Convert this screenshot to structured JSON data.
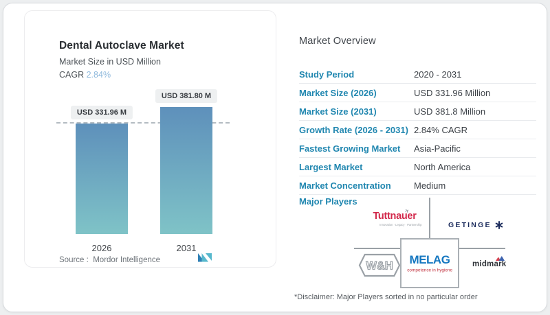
{
  "chart_card": {
    "title": "Dental Autoclave Market",
    "subtitle": "Market Size in USD Million",
    "cagr_label": "CAGR",
    "cagr_value": "2.84%",
    "source_label": "Source :",
    "source_name": "Mordor Intelligence"
  },
  "chart_data": {
    "type": "bar",
    "title": "Dental Autoclave Market",
    "ylabel": "Market Size in USD Million",
    "categories": [
      "2026",
      "2031"
    ],
    "values": [
      331.96,
      381.8
    ],
    "value_labels": [
      "USD 331.96 M",
      "USD 381.80 M"
    ],
    "reference_line": 331.96,
    "ylim": [
      0,
      420
    ],
    "grid": false,
    "bar_color_top": "#5e90bb",
    "bar_color_bottom": "#7fc3c7"
  },
  "overview": {
    "title": "Market Overview",
    "rows": [
      {
        "label": "Study Period",
        "value": "2020 - 2031"
      },
      {
        "label": "Market Size (2026)",
        "value": "USD 331.96 Million"
      },
      {
        "label": "Market Size (2031)",
        "value": "USD 381.8 Million"
      },
      {
        "label": "Growth Rate (2026 - 2031)",
        "value": "2.84% CAGR"
      },
      {
        "label": "Fastest Growing Market",
        "value": "Asia-Pacific"
      },
      {
        "label": "Largest Market",
        "value": "North America"
      },
      {
        "label": "Market Concentration",
        "value": "Medium"
      }
    ],
    "major_players_label": "Major Players",
    "players": {
      "tuttnauer": {
        "name": "Tuttnauer",
        "tagline": "Innovation · Legacy · Partnership",
        "color": "#d2294b"
      },
      "getinge": {
        "name": "GETINGE",
        "color": "#1b2b5c"
      },
      "wh": {
        "name": "W&H",
        "color": "#9aa0a6"
      },
      "melag": {
        "name": "MELAG",
        "tagline": "competence in hygiene",
        "color": "#1577c0"
      },
      "midmark": {
        "name": "midmark",
        "color": "#2f3338"
      }
    },
    "disclaimer": "*Disclaimer: Major Players sorted in no particular order"
  },
  "icons": {
    "tuttnauer_plane": "✈"
  },
  "colors": {
    "accent_teal": "#2187b0",
    "cagr_blue": "#8fb9dc",
    "bar_top": "#5e90bb",
    "bar_bottom": "#7fc3c7",
    "dashed_line": "#b3bbc1",
    "diagram_line": "#9aa0a6"
  }
}
